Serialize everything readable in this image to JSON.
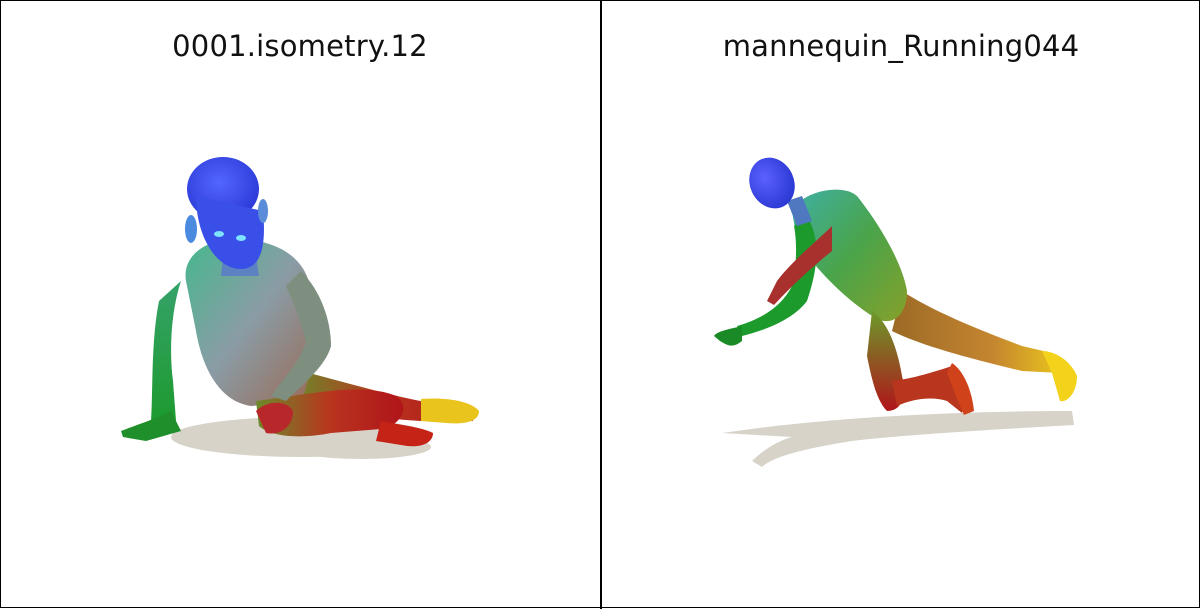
{
  "panels": [
    {
      "title": "0001.isometry.12"
    },
    {
      "title": "mannequin_Running044"
    }
  ],
  "colors": {
    "head": "#3b4ff0",
    "torso": "#7fa6a0",
    "left_arm": "#1c9a2c",
    "right_arm": "#b8272a",
    "leg": "#b01a1a",
    "foot": "#f2d21b",
    "shadow": "#d7d3c9"
  }
}
